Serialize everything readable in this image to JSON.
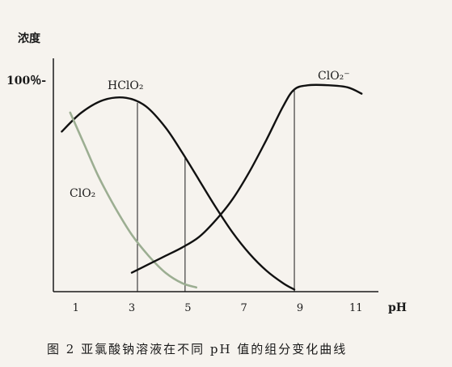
{
  "chart_data": {
    "type": "line",
    "ylabel": "浓度",
    "xlabel": "pH",
    "y_tick_label": "100％-",
    "x_tick_labels": [
      "1",
      "3",
      "5",
      "7",
      "9",
      "11"
    ],
    "x_ticks": [
      1,
      3,
      5,
      7,
      9,
      11
    ],
    "xlim": [
      0.2,
      11.8
    ],
    "ylim": [
      0,
      100
    ],
    "caption": "图 2  亚氯酸钠溶液在不同 pH 值的组分变化曲线",
    "series": [
      {
        "name": "HClO₂",
        "color": "#111111",
        "x": [
          0.5,
          1.2,
          2.0,
          2.8,
          3.5,
          4.2,
          4.8,
          5.4,
          6.0,
          6.6,
          7.2,
          7.8,
          8.4,
          8.8
        ],
        "y": [
          76,
          85,
          91,
          92,
          88,
          78,
          66,
          53,
          40,
          28,
          18,
          10,
          4,
          1
        ]
      },
      {
        "name": "ClO₂",
        "color": "#9cae92",
        "x": [
          0.8,
          1.3,
          1.8,
          2.4,
          3.0,
          3.6,
          4.2,
          4.8,
          5.3
        ],
        "y": [
          85,
          70,
          55,
          40,
          27,
          17,
          9,
          4,
          2
        ]
      },
      {
        "name": "ClO₂⁻",
        "color": "#111111",
        "x": [
          3.0,
          3.6,
          4.2,
          4.8,
          5.4,
          6.0,
          6.6,
          7.2,
          7.8,
          8.4,
          8.8,
          9.3,
          10.0,
          10.7,
          11.2
        ],
        "y": [
          9,
          13,
          17,
          21,
          26,
          34,
          44,
          57,
          72,
          88,
          96,
          98,
          98,
          97,
          94
        ]
      }
    ],
    "vertical_lines": [
      3.2,
      4.9,
      8.8
    ],
    "series_labels": [
      "HClO₂",
      "ClO₂",
      "ClO₂⁻"
    ]
  }
}
